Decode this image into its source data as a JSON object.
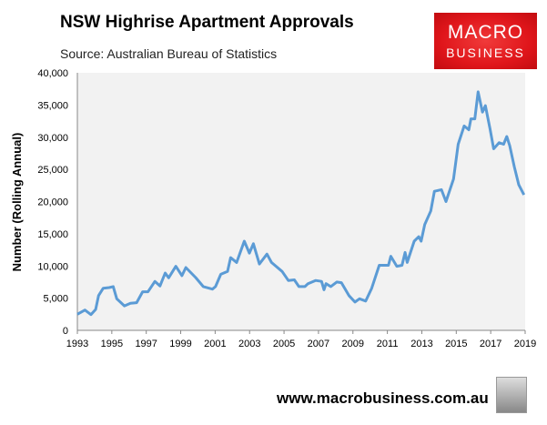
{
  "header": {
    "title": "NSW Highrise Apartment Approvals",
    "source": "Source: Australian Bureau of Statistics"
  },
  "logo": {
    "line1": "MACRO",
    "line2": "BUSINESS"
  },
  "footer": {
    "url": "www.macrobusiness.com.au",
    "icon": "wolf-icon"
  },
  "colors": {
    "line": "#5b9bd5",
    "plot_bg": "#f2f2f2",
    "logo": "#e0161b"
  },
  "chart_data": {
    "type": "line",
    "title": "NSW Highrise Apartment Approvals",
    "xlabel": "",
    "ylabel": "Number (Rolling Annual)",
    "xlim": [
      1993,
      2019
    ],
    "ylim": [
      0,
      40000
    ],
    "xticks": [
      1993,
      1995,
      1997,
      1999,
      2001,
      2003,
      2005,
      2007,
      2009,
      2011,
      2013,
      2015,
      2017,
      2019
    ],
    "yticks": [
      0,
      5000,
      10000,
      15000,
      20000,
      25000,
      30000,
      35000,
      40000
    ],
    "ytick_labels": [
      "0",
      "5,000",
      "10,000",
      "15,000",
      "20,000",
      "25,000",
      "30,000",
      "35,000",
      "40,000"
    ],
    "grid": false,
    "series": [
      {
        "name": "NSW Highrise Apartment Approvals",
        "x": [
          1993.0,
          1993.44,
          1993.79,
          1994.06,
          1994.23,
          1994.5,
          1994.85,
          1995.08,
          1995.29,
          1995.73,
          1996.08,
          1996.44,
          1996.79,
          1997.1,
          1997.5,
          1997.8,
          1998.1,
          1998.3,
          1998.72,
          1999.07,
          1999.3,
          1999.87,
          2000.31,
          2000.84,
          2001.02,
          2001.33,
          2001.72,
          2001.9,
          2002.25,
          2002.69,
          2002.99,
          2003.22,
          2003.57,
          2004.01,
          2004.27,
          2004.89,
          2005.25,
          2005.6,
          2005.86,
          2006.21,
          2006.39,
          2006.83,
          2007.18,
          2007.32,
          2007.44,
          2007.71,
          2008.06,
          2008.33,
          2008.77,
          2009.12,
          2009.38,
          2009.74,
          2010.09,
          2010.53,
          2011.06,
          2011.2,
          2011.55,
          2011.85,
          2012.03,
          2012.15,
          2012.56,
          2012.82,
          2012.96,
          2013.17,
          2013.52,
          2013.73,
          2014.14,
          2014.4,
          2014.84,
          2015.11,
          2015.46,
          2015.73,
          2015.85,
          2016.08,
          2016.27,
          2016.52,
          2016.69,
          2016.96,
          2017.17,
          2017.49,
          2017.75,
          2017.93,
          2018.1,
          2018.37,
          2018.63,
          2018.93
        ],
        "values": [
          2500,
          3150,
          2450,
          3250,
          5400,
          6550,
          6650,
          6800,
          4900,
          3800,
          4200,
          4300,
          6000,
          6000,
          7600,
          6900,
          8900,
          8150,
          9950,
          8500,
          9750,
          8200,
          6800,
          6400,
          6800,
          8700,
          9150,
          11300,
          10550,
          13850,
          12000,
          13450,
          10300,
          11850,
          10550,
          9150,
          7750,
          7850,
          6800,
          6800,
          7250,
          7750,
          7600,
          6300,
          7250,
          6800,
          7500,
          7400,
          5400,
          4400,
          4900,
          4550,
          6550,
          10100,
          10100,
          11500,
          9950,
          10100,
          12100,
          10550,
          13850,
          14550,
          13850,
          16450,
          18550,
          21600,
          21850,
          20000,
          23500,
          28900,
          31750,
          31150,
          32850,
          32850,
          37050,
          33900,
          34900,
          31300,
          28200,
          29150,
          28900,
          30100,
          28700,
          25400,
          22600,
          21050
        ]
      }
    ]
  }
}
